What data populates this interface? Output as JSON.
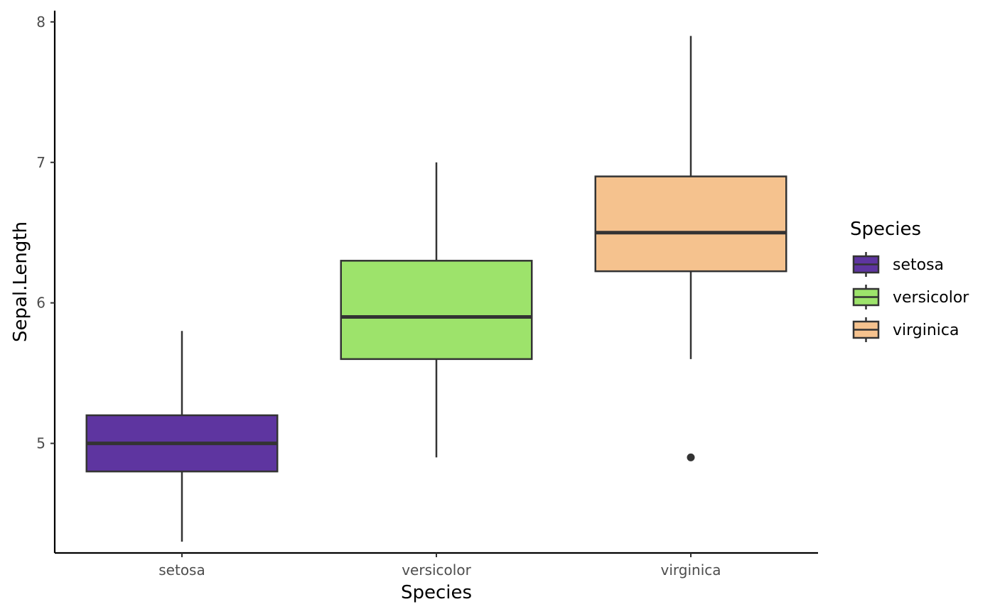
{
  "chart_data": {
    "type": "boxplot",
    "title": "",
    "xlabel": "Species",
    "ylabel": "Sepal.Length",
    "ylim": [
      4.22,
      8.08
    ],
    "yticks": [
      5,
      6,
      7,
      8
    ],
    "ytick_labels": [
      "5",
      "6",
      "7",
      "8"
    ],
    "categories": [
      "setosa",
      "versicolor",
      "virginica"
    ],
    "boxes": [
      {
        "name": "setosa",
        "fill": "#5e35a0",
        "whisker_low": 4.3,
        "q1": 4.8,
        "median": 5.0,
        "q3": 5.2,
        "whisker_high": 5.8,
        "outliers": []
      },
      {
        "name": "versicolor",
        "fill": "#9de36b",
        "whisker_low": 4.9,
        "q1": 5.6,
        "median": 5.9,
        "q3": 6.3,
        "whisker_high": 7.0,
        "outliers": []
      },
      {
        "name": "virginica",
        "fill": "#f5c28e",
        "whisker_low": 5.6,
        "q1": 6.225,
        "median": 6.5,
        "q3": 6.9,
        "whisker_high": 7.9,
        "outliers": [
          4.9
        ]
      }
    ],
    "legend": {
      "title": "Species",
      "position": "right",
      "entries": [
        "setosa",
        "versicolor",
        "virginica"
      ]
    },
    "grid": false,
    "line_color": "#333333",
    "axis_color": "#000000"
  }
}
